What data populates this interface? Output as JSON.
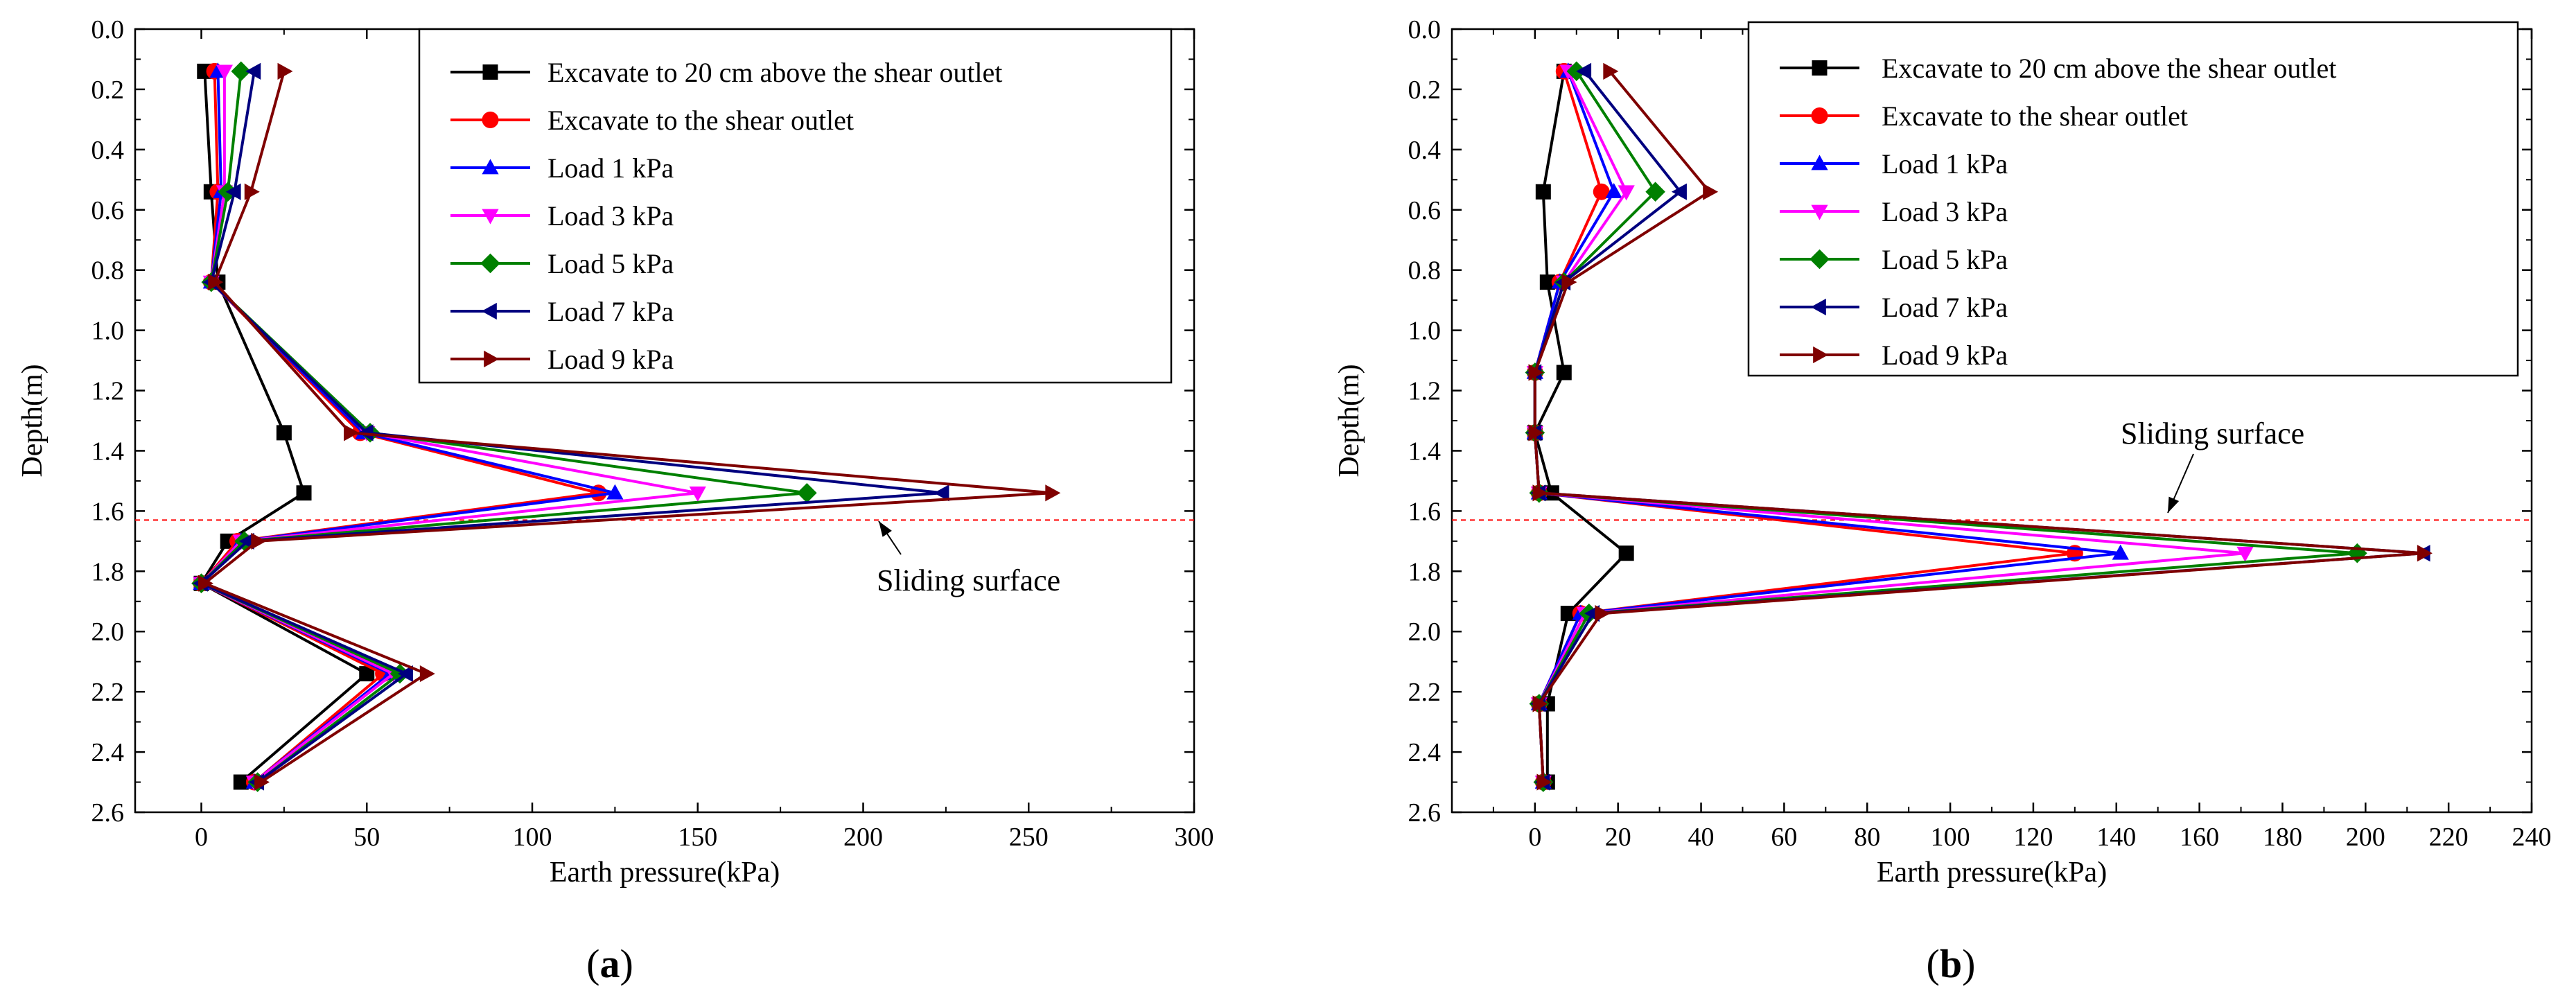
{
  "chart_data": [
    {
      "type": "line",
      "panel_label": "a",
      "xlabel": "Earth pressure(kPa)",
      "ylabel": "Depth(m)",
      "xlim": [
        -20,
        300
      ],
      "ylim": [
        0.0,
        2.6
      ],
      "y_inverted": true,
      "x_ticks": [
        0,
        50,
        100,
        150,
        200,
        250,
        300
      ],
      "x_tick_labels": [
        "0",
        "50",
        "100",
        "150",
        "200",
        "250",
        "300"
      ],
      "y_ticks": [
        0.0,
        0.2,
        0.4,
        0.6,
        0.8,
        1.0,
        1.2,
        1.4,
        1.6,
        1.8,
        2.0,
        2.2,
        2.4,
        2.6
      ],
      "y_tick_labels": [
        "0.0",
        "0.2",
        "0.4",
        "0.6",
        "0.8",
        "1.0",
        "1.2",
        "1.4",
        "1.6",
        "1.8",
        "2.0",
        "2.2",
        "2.4",
        "2.6"
      ],
      "legend_position": "top-right",
      "sliding_surface": {
        "depth": 1.63,
        "label": "Sliding surface"
      },
      "series": [
        {
          "name": "Excavate to 20 cm above the shear outlet",
          "color": "#000000",
          "marker": "square",
          "points": [
            [
              1,
              0.14
            ],
            [
              3,
              0.54
            ],
            [
              5,
              0.84
            ],
            [
              25,
              1.34
            ],
            [
              31,
              1.54
            ],
            [
              8,
              1.7
            ],
            [
              0,
              1.84
            ],
            [
              50,
              2.14
            ],
            [
              12,
              2.5
            ]
          ]
        },
        {
          "name": "Excavate to the shear outlet",
          "color": "#ff0000",
          "marker": "circle",
          "points": [
            [
              4,
              0.14
            ],
            [
              5,
              0.54
            ],
            [
              3,
              0.84
            ],
            [
              48,
              1.34
            ],
            [
              120,
              1.54
            ],
            [
              11,
              1.7
            ],
            [
              0,
              1.84
            ],
            [
              55,
              2.14
            ],
            [
              16,
              2.5
            ]
          ]
        },
        {
          "name": "Load 1 kPa",
          "color": "#0000ff",
          "marker": "triangle-up",
          "points": [
            [
              5,
              0.14
            ],
            [
              6,
              0.54
            ],
            [
              3,
              0.84
            ],
            [
              49,
              1.34
            ],
            [
              125,
              1.54
            ],
            [
              12,
              1.7
            ],
            [
              0,
              1.84
            ],
            [
              57,
              2.14
            ],
            [
              16,
              2.5
            ]
          ]
        },
        {
          "name": "Load 3 kPa",
          "color": "#ff00ff",
          "marker": "triangle-down",
          "points": [
            [
              7,
              0.14
            ],
            [
              7,
              0.54
            ],
            [
              3,
              0.84
            ],
            [
              50,
              1.34
            ],
            [
              150,
              1.54
            ],
            [
              12,
              1.7
            ],
            [
              0,
              1.84
            ],
            [
              58,
              2.14
            ],
            [
              16,
              2.5
            ]
          ]
        },
        {
          "name": "Load 5 kPa",
          "color": "#008000",
          "marker": "diamond",
          "points": [
            [
              12,
              0.14
            ],
            [
              8,
              0.54
            ],
            [
              3,
              0.84
            ],
            [
              51,
              1.34
            ],
            [
              183,
              1.54
            ],
            [
              13,
              1.7
            ],
            [
              0,
              1.84
            ],
            [
              60,
              2.14
            ],
            [
              17,
              2.5
            ]
          ]
        },
        {
          "name": "Load 7 kPa",
          "color": "#00007f",
          "marker": "triangle-left",
          "points": [
            [
              16,
              0.14
            ],
            [
              10,
              0.54
            ],
            [
              3,
              0.84
            ],
            [
              50,
              1.34
            ],
            [
              224,
              1.54
            ],
            [
              14,
              1.7
            ],
            [
              0,
              1.84
            ],
            [
              62,
              2.14
            ],
            [
              17,
              2.5
            ]
          ]
        },
        {
          "name": "Load 9 kPa",
          "color": "#7f0000",
          "marker": "triangle-right",
          "points": [
            [
              25,
              0.14
            ],
            [
              15,
              0.54
            ],
            [
              4,
              0.84
            ],
            [
              45,
              1.34
            ],
            [
              257,
              1.54
            ],
            [
              17,
              1.7
            ],
            [
              1,
              1.84
            ],
            [
              68,
              2.14
            ],
            [
              18,
              2.5
            ]
          ]
        }
      ]
    },
    {
      "type": "line",
      "panel_label": "b",
      "xlabel": "Earth pressure(kPa)",
      "ylabel": "Depth(m)",
      "xlim": [
        -20,
        240
      ],
      "ylim": [
        0.0,
        2.6
      ],
      "y_inverted": true,
      "x_ticks": [
        0,
        20,
        40,
        60,
        80,
        100,
        120,
        140,
        160,
        180,
        200,
        220,
        240
      ],
      "x_tick_labels": [
        "0",
        "20",
        "40",
        "60",
        "80",
        "100",
        "120",
        "140",
        "160",
        "180",
        "200",
        "220",
        "240"
      ],
      "y_ticks": [
        0.0,
        0.2,
        0.4,
        0.6,
        0.8,
        1.0,
        1.2,
        1.4,
        1.6,
        1.8,
        2.0,
        2.2,
        2.4,
        2.6
      ],
      "y_tick_labels": [
        "0.0",
        "0.2",
        "0.4",
        "0.6",
        "0.8",
        "1.0",
        "1.2",
        "1.4",
        "1.6",
        "1.8",
        "2.0",
        "2.2",
        "2.4",
        "2.6"
      ],
      "legend_position": "top-right",
      "sliding_surface": {
        "depth": 1.63,
        "label": "Sliding surface"
      },
      "series": [
        {
          "name": "Excavate to 20 cm above the shear outlet",
          "color": "#000000",
          "marker": "square",
          "points": [
            [
              7,
              0.14
            ],
            [
              2,
              0.54
            ],
            [
              3,
              0.84
            ],
            [
              7,
              1.14
            ],
            [
              0,
              1.34
            ],
            [
              4,
              1.54
            ],
            [
              22,
              1.74
            ],
            [
              8,
              1.94
            ],
            [
              3,
              2.24
            ],
            [
              3,
              2.5
            ]
          ]
        },
        {
          "name": "Excavate to the shear outlet",
          "color": "#ff0000",
          "marker": "circle",
          "points": [
            [
              7,
              0.14
            ],
            [
              16,
              0.54
            ],
            [
              6,
              0.84
            ],
            [
              0,
              1.14
            ],
            [
              0,
              1.34
            ],
            [
              1,
              1.54
            ],
            [
              130,
              1.74
            ],
            [
              11,
              1.94
            ],
            [
              1,
              2.24
            ],
            [
              2,
              2.5
            ]
          ]
        },
        {
          "name": "Load 1 kPa",
          "color": "#0000ff",
          "marker": "triangle-up",
          "points": [
            [
              8,
              0.14
            ],
            [
              19,
              0.54
            ],
            [
              6,
              0.84
            ],
            [
              0,
              1.14
            ],
            [
              0,
              1.34
            ],
            [
              1,
              1.54
            ],
            [
              141,
              1.74
            ],
            [
              11,
              1.94
            ],
            [
              1,
              2.24
            ],
            [
              2,
              2.5
            ]
          ]
        },
        {
          "name": "Load 3 kPa",
          "color": "#ff00ff",
          "marker": "triangle-down",
          "points": [
            [
              8,
              0.14
            ],
            [
              22,
              0.54
            ],
            [
              7,
              0.84
            ],
            [
              0,
              1.14
            ],
            [
              0,
              1.34
            ],
            [
              1,
              1.54
            ],
            [
              171,
              1.74
            ],
            [
              12,
              1.94
            ],
            [
              1,
              2.24
            ],
            [
              2,
              2.5
            ]
          ]
        },
        {
          "name": "Load 5 kPa",
          "color": "#008000",
          "marker": "diamond",
          "points": [
            [
              10,
              0.14
            ],
            [
              29,
              0.54
            ],
            [
              7,
              0.84
            ],
            [
              0,
              1.14
            ],
            [
              0,
              1.34
            ],
            [
              1,
              1.54
            ],
            [
              198,
              1.74
            ],
            [
              13,
              1.94
            ],
            [
              1,
              2.24
            ],
            [
              2,
              2.5
            ]
          ]
        },
        {
          "name": "Load 7 kPa",
          "color": "#00007f",
          "marker": "triangle-left",
          "points": [
            [
              12,
              0.14
            ],
            [
              35,
              0.54
            ],
            [
              7,
              0.84
            ],
            [
              0,
              1.14
            ],
            [
              0,
              1.34
            ],
            [
              1,
              1.54
            ],
            [
              214,
              1.74
            ],
            [
              14,
              1.94
            ],
            [
              1,
              2.24
            ],
            [
              2,
              2.5
            ]
          ]
        },
        {
          "name": "Load 9 kPa",
          "color": "#7f0000",
          "marker": "triangle-right",
          "points": [
            [
              18,
              0.14
            ],
            [
              42,
              0.54
            ],
            [
              8,
              0.84
            ],
            [
              0,
              1.14
            ],
            [
              0,
              1.34
            ],
            [
              1,
              1.54
            ],
            [
              214,
              1.74
            ],
            [
              16,
              1.94
            ],
            [
              1,
              2.24
            ],
            [
              2,
              2.5
            ]
          ]
        }
      ]
    }
  ]
}
